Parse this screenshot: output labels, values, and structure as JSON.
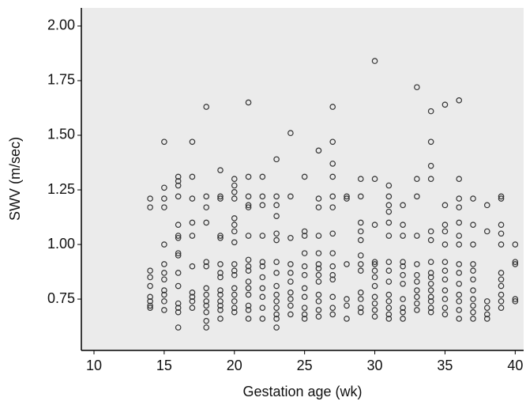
{
  "chart_data": {
    "type": "scatter",
    "x_label": "Gestation age (wk)",
    "y_label": "SWV (m/sec)",
    "xlim": [
      9.1,
      40.6
    ],
    "ylim": [
      0.515,
      2.083
    ],
    "xticks": [
      10,
      15,
      20,
      25,
      30,
      35,
      40
    ],
    "yticks": [
      {
        "value": 0.75,
        "label": "0.75"
      },
      {
        "value": 1.0,
        "label": "1.00"
      },
      {
        "value": 1.25,
        "label": "1.25"
      },
      {
        "value": 1.5,
        "label": "1.50"
      },
      {
        "value": 1.75,
        "label": "1.75"
      },
      {
        "value": 2.0,
        "label": "2.00"
      }
    ],
    "background": "#ebebeb",
    "color": "#333333",
    "x": [
      14,
      14,
      14,
      14,
      14,
      14,
      14,
      14,
      14,
      15,
      15,
      15,
      15,
      15,
      15,
      15,
      15,
      15,
      15,
      15,
      15,
      16,
      16,
      16,
      16,
      16,
      16,
      16,
      16,
      16,
      16,
      16,
      16,
      16,
      16,
      16,
      17,
      17,
      17,
      17,
      17,
      17,
      17,
      17,
      17,
      17,
      18,
      18,
      18,
      18,
      18,
      18,
      18,
      18,
      18,
      18,
      18,
      18,
      18,
      19,
      19,
      19,
      19,
      19,
      19,
      19,
      19,
      19,
      19,
      19,
      19,
      19,
      19,
      20,
      20,
      20,
      20,
      20,
      20,
      20,
      20,
      20,
      20,
      20,
      20,
      20,
      20,
      20,
      20,
      21,
      21,
      21,
      21,
      21,
      21,
      21,
      21,
      21,
      21,
      21,
      21,
      21,
      21,
      21,
      22,
      22,
      22,
      22,
      22,
      22,
      22,
      22,
      22,
      22,
      22,
      23,
      23,
      23,
      23,
      23,
      23,
      23,
      23,
      23,
      23,
      23,
      23,
      23,
      23,
      23,
      24,
      24,
      24,
      24,
      24,
      24,
      24,
      24,
      24,
      24,
      25,
      25,
      25,
      25,
      25,
      25,
      25,
      25,
      25,
      25,
      25,
      26,
      26,
      26,
      26,
      26,
      26,
      26,
      26,
      26,
      26,
      26,
      26,
      26,
      27,
      27,
      27,
      27,
      27,
      27,
      27,
      27,
      27,
      27,
      27,
      27,
      27,
      27,
      28,
      28,
      28,
      28,
      28,
      28,
      29,
      29,
      29,
      29,
      29,
      29,
      29,
      29,
      29,
      29,
      29,
      29,
      30,
      30,
      30,
      30,
      30,
      30,
      30,
      30,
      30,
      30,
      30,
      30,
      31,
      31,
      31,
      31,
      31,
      31,
      31,
      31,
      31,
      31,
      31,
      31,
      31,
      31,
      32,
      32,
      32,
      32,
      32,
      32,
      32,
      32,
      32,
      32,
      32,
      33,
      33,
      33,
      33,
      33,
      33,
      33,
      33,
      33,
      33,
      33,
      34,
      34,
      34,
      34,
      34,
      34,
      34,
      34,
      34,
      34,
      34,
      34,
      34,
      34,
      34,
      35,
      35,
      35,
      35,
      35,
      35,
      35,
      35,
      35,
      35,
      35,
      35,
      36,
      36,
      36,
      36,
      36,
      36,
      36,
      36,
      36,
      36,
      36,
      36,
      36,
      36,
      37,
      37,
      37,
      37,
      37,
      37,
      37,
      37,
      37,
      37,
      37,
      38,
      38,
      38,
      38,
      38,
      38,
      39,
      39,
      39,
      39,
      39,
      39,
      39,
      39,
      39,
      39,
      39,
      40,
      40,
      40,
      40,
      40
    ],
    "values": [
      1.21,
      1.17,
      0.88,
      0.85,
      0.81,
      0.76,
      0.74,
      0.72,
      0.71,
      1.47,
      1.26,
      1.21,
      1.17,
      1.0,
      0.91,
      0.87,
      0.84,
      0.79,
      0.77,
      0.74,
      0.7,
      1.31,
      1.29,
      1.27,
      1.22,
      1.09,
      1.04,
      1.03,
      0.96,
      0.95,
      0.87,
      0.81,
      0.73,
      0.71,
      0.69,
      0.62,
      1.47,
      1.31,
      1.21,
      1.1,
      1.04,
      0.9,
      0.78,
      0.76,
      0.74,
      0.71,
      1.63,
      1.22,
      1.17,
      1.1,
      0.92,
      0.9,
      0.8,
      0.77,
      0.74,
      0.72,
      0.69,
      0.65,
      0.62,
      1.34,
      1.22,
      1.21,
      1.04,
      1.03,
      0.91,
      0.87,
      0.85,
      0.79,
      0.77,
      0.74,
      0.72,
      0.7,
      0.66,
      1.3,
      1.27,
      1.24,
      1.21,
      1.12,
      1.09,
      1.06,
      1.01,
      0.91,
      0.88,
      0.86,
      0.8,
      0.77,
      0.74,
      0.71,
      0.69,
      1.65,
      1.31,
      1.22,
      1.18,
      1.17,
      1.04,
      0.93,
      0.9,
      0.88,
      0.83,
      0.8,
      0.77,
      0.72,
      0.7,
      0.66,
      1.31,
      1.22,
      1.18,
      1.04,
      0.92,
      0.9,
      0.85,
      0.8,
      0.76,
      0.71,
      0.66,
      1.39,
      1.22,
      1.18,
      1.13,
      1.05,
      1.02,
      0.92,
      0.87,
      0.81,
      0.77,
      0.74,
      0.71,
      0.68,
      0.66,
      0.62,
      1.51,
      1.22,
      1.03,
      0.91,
      0.87,
      0.83,
      0.78,
      0.75,
      0.72,
      0.68,
      1.31,
      1.06,
      1.04,
      0.96,
      0.9,
      0.86,
      0.8,
      0.76,
      0.71,
      0.68,
      0.66,
      1.43,
      1.21,
      1.17,
      1.04,
      0.96,
      0.91,
      0.89,
      0.86,
      0.83,
      0.77,
      0.74,
      0.7,
      0.67,
      1.63,
      1.47,
      1.37,
      1.31,
      1.22,
      1.17,
      1.05,
      0.96,
      0.9,
      0.86,
      0.84,
      0.76,
      0.71,
      0.68,
      1.22,
      1.21,
      0.91,
      0.75,
      0.72,
      0.66,
      1.3,
      1.22,
      1.1,
      1.06,
      1.02,
      0.95,
      0.91,
      0.88,
      0.78,
      0.75,
      0.71,
      0.69,
      1.84,
      1.3,
      1.09,
      0.92,
      0.91,
      0.88,
      0.85,
      0.81,
      0.76,
      0.73,
      0.7,
      0.67,
      1.27,
      1.22,
      1.18,
      1.15,
      1.1,
      1.04,
      0.92,
      0.88,
      0.83,
      0.77,
      0.74,
      0.71,
      0.68,
      0.66,
      1.18,
      1.09,
      1.04,
      0.92,
      0.9,
      0.86,
      0.82,
      0.75,
      0.71,
      0.69,
      0.66,
      1.72,
      1.3,
      1.22,
      1.04,
      0.91,
      0.86,
      0.83,
      0.79,
      0.76,
      0.73,
      0.7,
      1.61,
      1.47,
      1.36,
      1.3,
      1.06,
      1.02,
      0.92,
      0.87,
      0.85,
      0.82,
      0.79,
      0.76,
      0.74,
      0.71,
      0.69,
      1.64,
      1.18,
      1.09,
      1.06,
      1.0,
      0.92,
      0.88,
      0.84,
      0.79,
      0.75,
      0.71,
      0.68,
      1.66,
      1.3,
      1.21,
      1.17,
      1.1,
      1.04,
      1.0,
      0.91,
      0.87,
      0.82,
      0.77,
      0.74,
      0.7,
      0.66,
      1.21,
      1.09,
      1.0,
      0.91,
      0.88,
      0.84,
      0.79,
      0.75,
      0.72,
      0.69,
      0.66,
      1.18,
      1.06,
      0.74,
      0.71,
      0.68,
      0.66,
      1.22,
      1.21,
      1.09,
      1.05,
      1.0,
      0.87,
      0.84,
      0.81,
      0.77,
      0.74,
      0.71,
      1.0,
      0.92,
      0.91,
      0.75,
      0.74
    ]
  }
}
